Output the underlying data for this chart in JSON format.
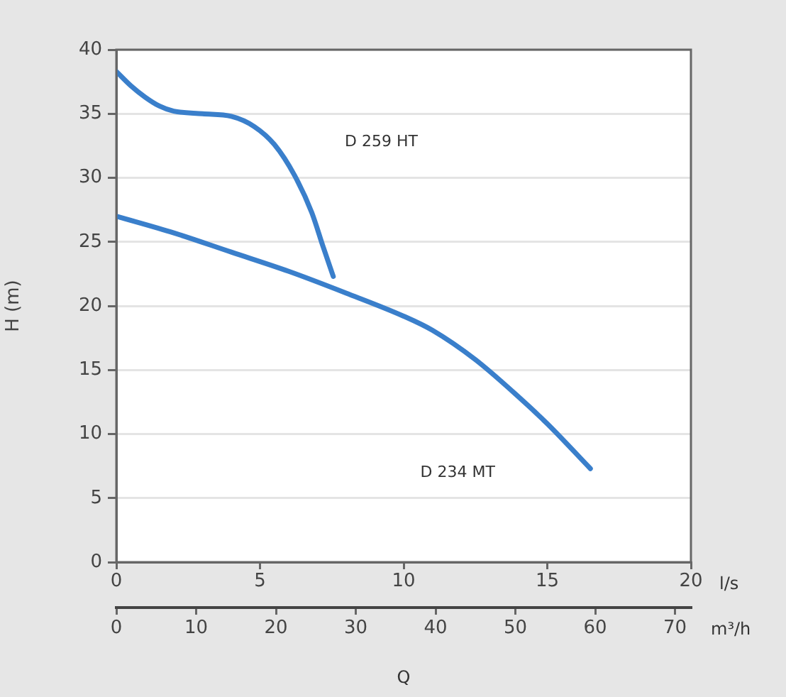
{
  "chart_data": {
    "type": "line",
    "xlabel": "l/s",
    "x2label": "m³/h",
    "ylabel": "H (m)",
    "xlim": [
      0,
      20
    ],
    "xticks": [
      0,
      5,
      10,
      15,
      20
    ],
    "x2lim": [
      0,
      72
    ],
    "x2ticks": [
      0,
      10,
      20,
      30,
      40,
      50,
      60,
      70
    ],
    "ylim": [
      0,
      40
    ],
    "yticks": [
      0,
      5,
      10,
      15,
      20,
      25,
      30,
      35,
      40
    ],
    "grid": "y",
    "marker": "none",
    "line_style": "solid",
    "series": [
      {
        "color": "#3a7fcb",
        "x": [
          0,
          0.5,
          1,
          1.5,
          2,
          3,
          4,
          4.8,
          5.5,
          6.2,
          6.8,
          7.2,
          7.55
        ],
        "values": [
          38.3,
          37.2,
          36.3,
          35.6,
          35.2,
          35,
          34.8,
          34,
          32.6,
          30.2,
          27.3,
          24.6,
          22.3
        ]
      },
      {
        "color": "#3a7fcb",
        "x": [
          0,
          2,
          4,
          6,
          8,
          10,
          11,
          12.5,
          14,
          15,
          16.5
        ],
        "values": [
          27,
          25.7,
          24.2,
          22.7,
          21,
          19.2,
          18.1,
          15.8,
          12.9,
          10.8,
          7.3
        ]
      }
    ],
    "annotations": [
      "D 259 HT",
      "D 234 MT",
      "Q"
    ]
  }
}
